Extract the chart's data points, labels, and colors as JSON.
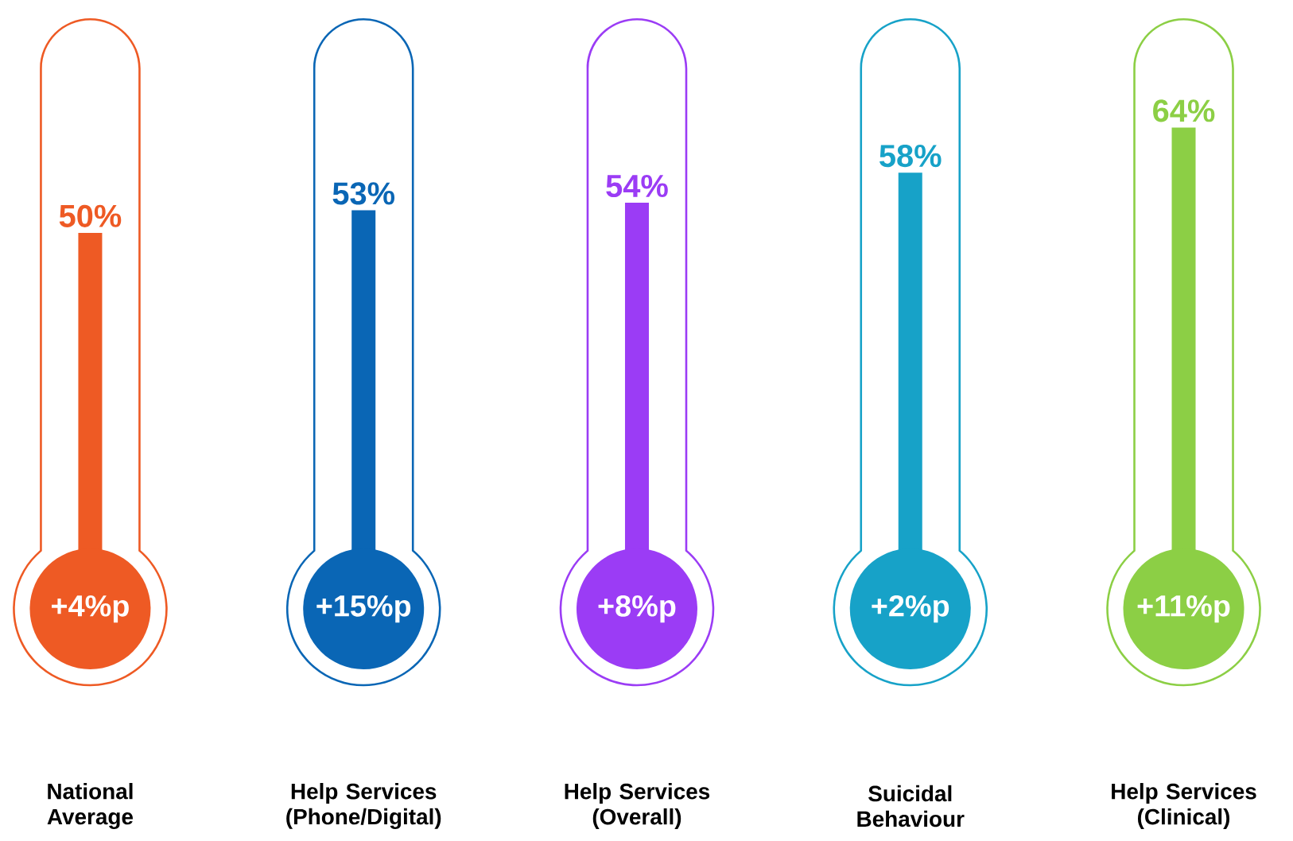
{
  "chart_data": {
    "type": "bar",
    "categories": [
      "National Average",
      "Help Services (Phone/Digital)",
      "Help Services (Overall)",
      "Suicidal Behaviour",
      "Help Services (Clinical)"
    ],
    "values": [
      50,
      53,
      54,
      58,
      64
    ],
    "colors": [
      "#ee5a24",
      "#0a66b5",
      "#9b3cf5",
      "#17a2c8",
      "#8ccf45"
    ],
    "value_labels": [
      "50%",
      "53%",
      "54%",
      "58%",
      "64%"
    ],
    "annotations": [
      {
        "text": "+4%p",
        "x": "National Average"
      },
      {
        "text": "+15%p",
        "x": "Help Services (Phone/Digital)"
      },
      {
        "text": "+8%p",
        "x": "Help Services (Overall)"
      },
      {
        "text": "+2%p",
        "x": "Suicidal Behaviour"
      },
      {
        "text": "+11%p",
        "x": "Help Services (Clinical)"
      }
    ]
  }
}
